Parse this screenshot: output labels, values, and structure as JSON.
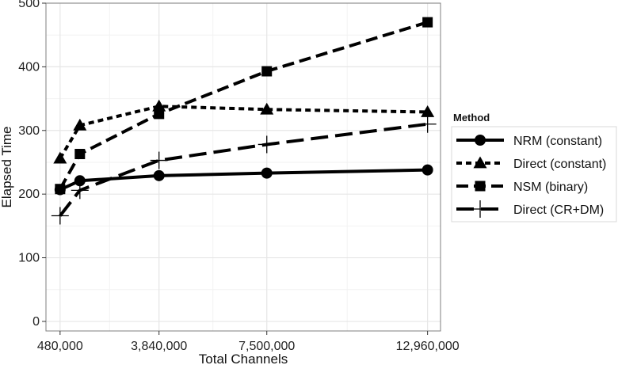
{
  "chart_data": {
    "type": "line",
    "xlabel": "Total Channels",
    "ylabel": "Elapsed Time",
    "x": [
      480000,
      1152000,
      3840000,
      7500000,
      12960000
    ],
    "xticks": [
      480000,
      3840000,
      7500000,
      12960000
    ],
    "xtick_labels": [
      "480,000",
      "3,840,000",
      "7,500,000",
      "12,960,000"
    ],
    "xlim": [
      0,
      13400000
    ],
    "yticks": [
      0,
      100,
      200,
      300,
      400,
      500
    ],
    "ytick_labels": [
      "0",
      "100",
      "200",
      "300",
      "400",
      "500"
    ],
    "ylim": [
      -15,
      500
    ],
    "grid": true,
    "legend_title": "Method",
    "legend_position": "right",
    "series": [
      {
        "name": "NRM (constant)",
        "marker": "circle",
        "dash": "solid",
        "values": [
          207,
          221,
          229,
          233,
          238
        ]
      },
      {
        "name": "Direct (constant)",
        "marker": "triangle",
        "dash": "dotted",
        "values": [
          256,
          308,
          338,
          333,
          329
        ]
      },
      {
        "name": "NSM (binary)",
        "marker": "square",
        "dash": "dashed",
        "values": [
          208,
          263,
          326,
          393,
          470
        ]
      },
      {
        "name": "Direct (CR+DM)",
        "marker": "plus",
        "dash": "longdash",
        "values": [
          166,
          206,
          253,
          278,
          310
        ]
      }
    ],
    "colors": {
      "line": "#000000",
      "grid_major": "#e6e6e6",
      "grid_minor": "#f2f2f2",
      "panel_border": "#7f7f7f"
    }
  }
}
